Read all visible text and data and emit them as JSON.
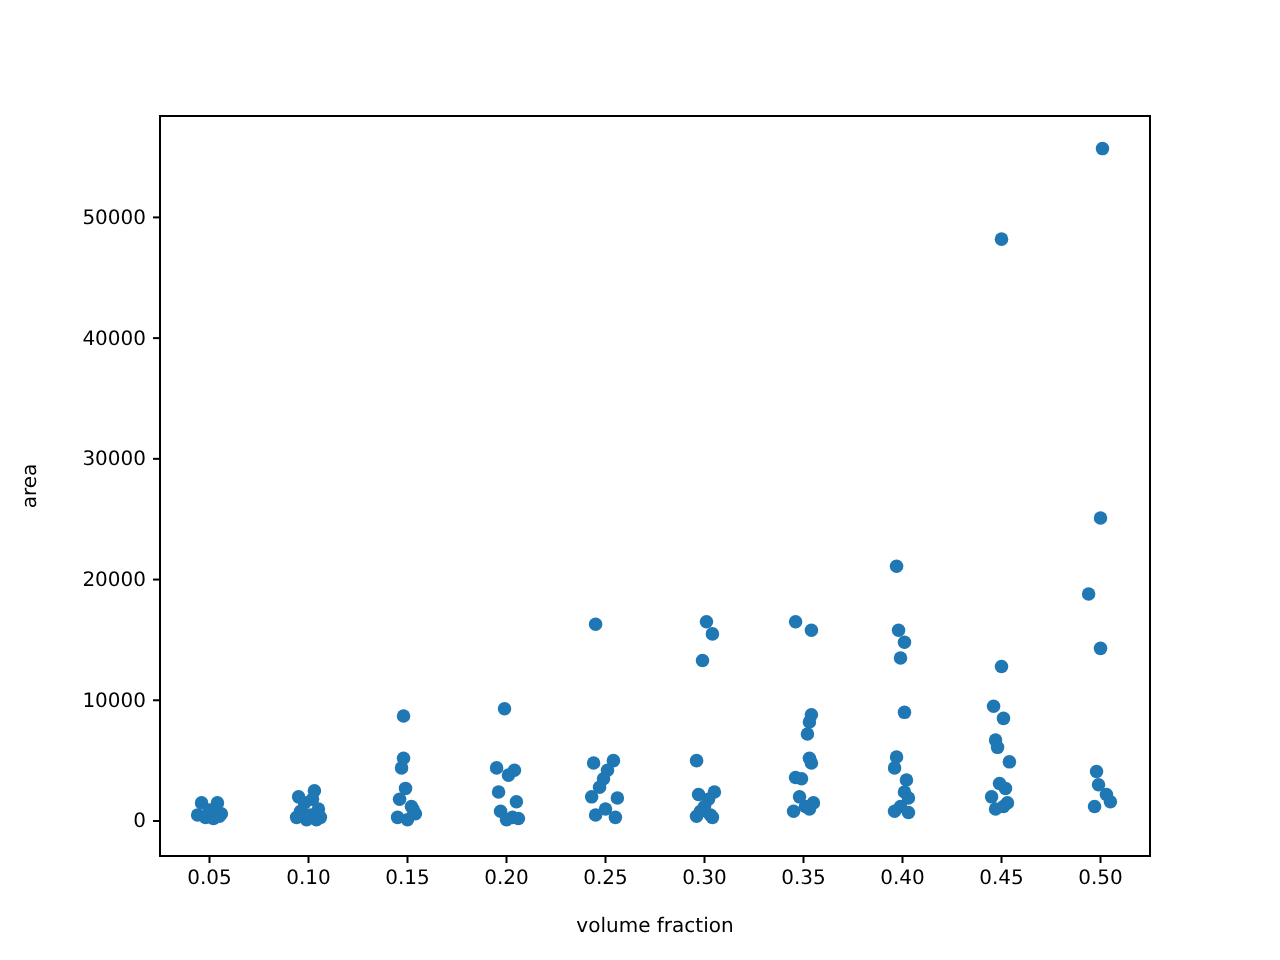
{
  "chart_data": {
    "type": "scatter",
    "xlabel": "volume fraction",
    "ylabel": "area",
    "marker": "circle",
    "grid": false,
    "xlim": [
      0.025,
      0.525
    ],
    "ylim": [
      -2900,
      58400
    ],
    "xticks": [
      0.05,
      {
        "value": 0.1,
        "label": "0.10"
      },
      0.15,
      {
        "value": 0.2,
        "label": "0.20"
      },
      0.25,
      {
        "value": 0.3,
        "label": "0.30"
      },
      0.35,
      {
        "value": 0.4,
        "label": "0.40"
      },
      0.45,
      {
        "value": 0.5,
        "label": "0.50"
      }
    ],
    "yticks": [
      0,
      10000,
      20000,
      30000,
      40000,
      50000
    ],
    "series": [
      {
        "color": "#1f77b4",
        "x": [
          0.046,
          0.054,
          0.044,
          0.048,
          0.052,
          0.056,
          0.05,
          0.055,
          0.095,
          0.103,
          0.098,
          0.105,
          0.096,
          0.101,
          0.104,
          0.099,
          0.102,
          0.094,
          0.106,
          0.148,
          0.148,
          0.147,
          0.149,
          0.146,
          0.152,
          0.154,
          0.15,
          0.145,
          0.153,
          0.199,
          0.195,
          0.204,
          0.201,
          0.196,
          0.205,
          0.197,
          0.203,
          0.2,
          0.206,
          0.245,
          0.254,
          0.244,
          0.251,
          0.249,
          0.247,
          0.243,
          0.256,
          0.25,
          0.245,
          0.255,
          0.301,
          0.304,
          0.299,
          0.296,
          0.297,
          0.305,
          0.302,
          0.3,
          0.298,
          0.303,
          0.296,
          0.304,
          0.346,
          0.354,
          0.354,
          0.353,
          0.352,
          0.353,
          0.354,
          0.346,
          0.349,
          0.348,
          0.355,
          0.351,
          0.345,
          0.353,
          0.397,
          0.398,
          0.401,
          0.399,
          0.401,
          0.397,
          0.396,
          0.402,
          0.401,
          0.403,
          0.399,
          0.396,
          0.403,
          0.45,
          0.45,
          0.446,
          0.451,
          0.447,
          0.448,
          0.454,
          0.449,
          0.452,
          0.445,
          0.453,
          0.447,
          0.451,
          0.501,
          0.5,
          0.494,
          0.5,
          0.498,
          0.499,
          0.503,
          0.505,
          0.497
        ],
        "values": [
          1500,
          1500,
          500,
          300,
          200,
          600,
          900,
          400,
          2000,
          2500,
          1500,
          1000,
          800,
          500,
          100,
          100,
          1800,
          300,
          300,
          8700,
          5200,
          4400,
          2700,
          1800,
          1200,
          600,
          100,
          300,
          900,
          9300,
          4400,
          4200,
          3800,
          2400,
          1600,
          800,
          300,
          100,
          200,
          16300,
          5000,
          4800,
          4200,
          3500,
          2800,
          2000,
          1900,
          1000,
          500,
          300,
          16500,
          15500,
          13300,
          5000,
          2200,
          2400,
          1800,
          1200,
          800,
          500,
          400,
          300,
          16500,
          15800,
          8800,
          8200,
          7200,
          5200,
          4800,
          3600,
          3500,
          2000,
          1500,
          1200,
          800,
          1000,
          21100,
          15800,
          14800,
          13500,
          9000,
          5300,
          4400,
          3400,
          2400,
          1900,
          1200,
          800,
          700,
          48200,
          12800,
          9500,
          8500,
          6700,
          6100,
          4900,
          3100,
          2700,
          2000,
          1500,
          1000,
          1200,
          55700,
          25100,
          18800,
          14300,
          4100,
          3000,
          2200,
          1600,
          1200
        ]
      }
    ]
  }
}
